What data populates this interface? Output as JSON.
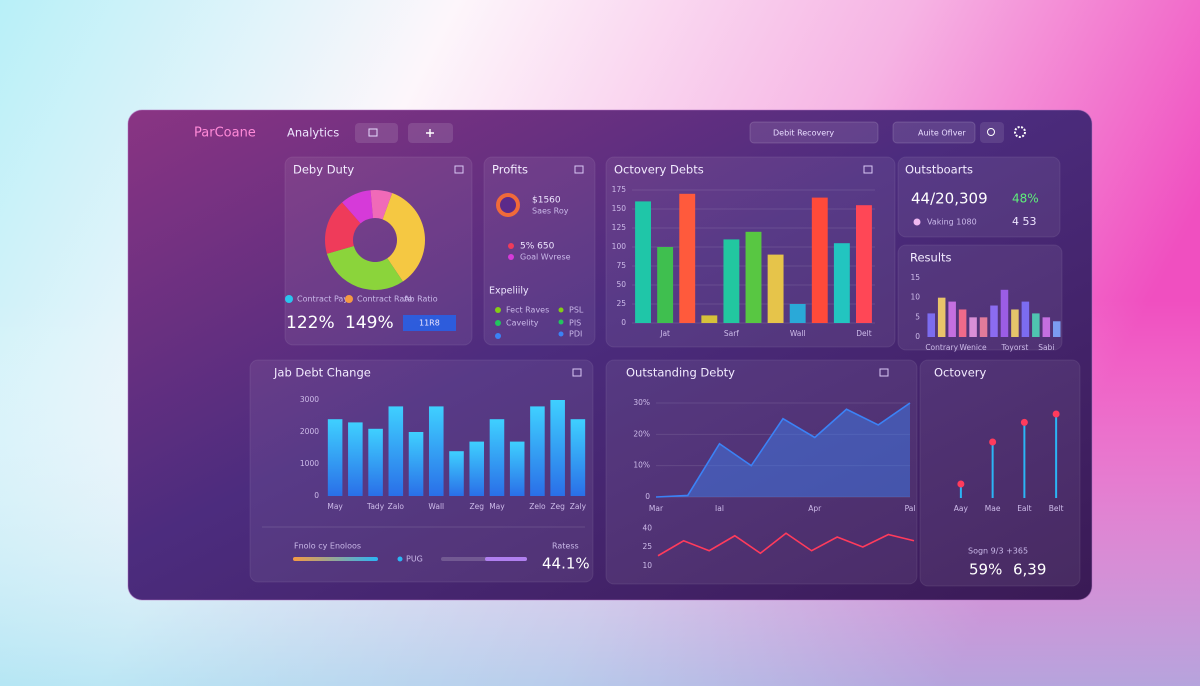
{
  "header": {
    "brand": "ParCoane",
    "nav": "Analytics",
    "search": "Debit Recovery",
    "user": "Auite Oflver"
  },
  "panels": [
    {
      "title": "Deby Duty",
      "chart": {
        "type": "pie",
        "values": [
          35,
          30,
          18,
          10,
          7
        ],
        "colors": [
          "#f5c842",
          "#8bd43b",
          "#ef3b5a",
          "#d63ad9",
          "#f06ab8"
        ]
      },
      "stats": [
        {
          "label": "Contract Pay",
          "value": "122%",
          "color": "#2bc4ee"
        },
        {
          "label": "Contract Rate",
          "value": "149%",
          "color": "#f59a42"
        },
        {
          "label": "Ab Ratio",
          "value": "11R8",
          "color": "#2563eb"
        }
      ]
    },
    {
      "title": "Profits",
      "items": [
        {
          "value": "$1560",
          "label": "Saes Roy"
        },
        {
          "value": "5%  650",
          "label": "Goal Wvrese"
        }
      ],
      "subtitle": "Expeliily",
      "list": [
        {
          "label": "Fect Raves",
          "value": "PSL",
          "color": "#84cc16"
        },
        {
          "label": "Cavelity",
          "value": "PIS",
          "color": "#22c55e"
        },
        {
          "value": "PDI",
          "color": "#3b82f6"
        }
      ]
    },
    {
      "title": "Octovery Debts",
      "chart": {
        "type": "bar",
        "categories": [
          null,
          "Jat",
          null,
          null,
          "Sarf",
          null,
          null,
          "Wall",
          null,
          null,
          "Delt"
        ],
        "values": [
          160,
          100,
          170,
          10,
          110,
          120,
          90,
          25,
          165,
          105,
          155
        ],
        "colors": [
          "#1fc6a8",
          "#3fbf4f",
          "#ff5a3c",
          "#d6c13a",
          "#22c7a0",
          "#58c742",
          "#e6c44a",
          "#2aa9d8",
          "#ff4a3a",
          "#22c5c0",
          "#ff4756"
        ],
        "ylim": [
          0,
          175
        ],
        "yticks": [
          0,
          25,
          50,
          75,
          100,
          125,
          150,
          175
        ],
        "grid": true
      }
    },
    {
      "title": "Outstboarts",
      "value": "44/20,309",
      "change": "48%",
      "note": "Vaking 1080",
      "note_value": "4 53"
    },
    {
      "title": "Results",
      "chart": {
        "type": "bar",
        "categories": [
          null,
          "Contrary",
          null,
          null,
          "Wenice",
          null,
          null,
          null,
          "Toyorst",
          null,
          null,
          "Sabi",
          null
        ],
        "values": [
          6,
          10,
          9,
          7,
          5,
          5,
          8,
          12,
          7,
          9,
          6,
          5,
          4
        ],
        "colors": [
          "#7c6cf0",
          "#e9c46a",
          "#c46fe0",
          "#ef6a8a",
          "#d88fd6",
          "#e27b9a",
          "#8b6cf0",
          "#9b5de5",
          "#e5c46a",
          "#7c6cf0",
          "#4fc3b0",
          "#c46fe0",
          "#7b9cf0"
        ],
        "ylim": [
          0,
          15
        ],
        "yticks": [
          0,
          5,
          10,
          15
        ],
        "grid": false
      }
    },
    {
      "title": "Jab Debt Change",
      "chart": {
        "type": "bar",
        "categories": [
          "May",
          null,
          "Tady",
          "Zalo",
          null,
          "Wall",
          null,
          "Zeg",
          "May",
          null,
          "Zelo",
          "Zeg",
          "Zaly"
        ],
        "values": [
          2400,
          2300,
          2100,
          2800,
          2000,
          2800,
          1400,
          1700,
          2400,
          1700,
          2800,
          3000,
          2400
        ],
        "color": "#1ea7f5",
        "ylim": [
          0,
          3000
        ],
        "yticks": [
          0,
          1000,
          2000,
          3000
        ],
        "grid": false
      },
      "footer_label": "Fnolo cy Enoloos",
      "legend": "PUG",
      "stat_label": "Ratess",
      "stat": "44.1%"
    },
    {
      "title": "Outstanding Debty",
      "chart": {
        "type": "area",
        "categories": [
          "Mar",
          null,
          "Ial",
          null,
          null,
          "Apr",
          null,
          null,
          "Pal"
        ],
        "values": [
          0,
          0.5,
          17,
          10,
          25,
          19,
          28,
          23,
          30
        ],
        "color": "#3b82f6",
        "ylim": [
          0,
          30
        ],
        "yticks": [
          0,
          {
            "value": 10,
            "label": "10%"
          },
          {
            "value": 20,
            "label": "20%"
          },
          {
            "value": 30,
            "label": "30%"
          }
        ],
        "grid": true
      },
      "chart2": {
        "type": "line",
        "values": [
          18,
          30,
          22,
          34,
          20,
          36,
          22,
          33,
          25,
          35,
          30
        ],
        "color": "#ff3b5c",
        "ylim": [
          5,
          45
        ],
        "yticks": [
          10,
          25,
          40
        ],
        "grid": false
      }
    },
    {
      "title": "Octovery",
      "chart": {
        "type": "lollipop",
        "categories": [
          "Aay",
          "Mae",
          "Ealt",
          "Belt"
        ],
        "values": [
          5,
          20,
          27,
          30
        ],
        "color": "#ff3b5c",
        "stem": "#2bb5f5",
        "ylim": [
          0,
          35
        ],
        "yticks": [],
        "grid": false
      },
      "stat_label": "Sogn 9/3 +365",
      "stats": [
        "59%",
        "6,39"
      ]
    }
  ]
}
